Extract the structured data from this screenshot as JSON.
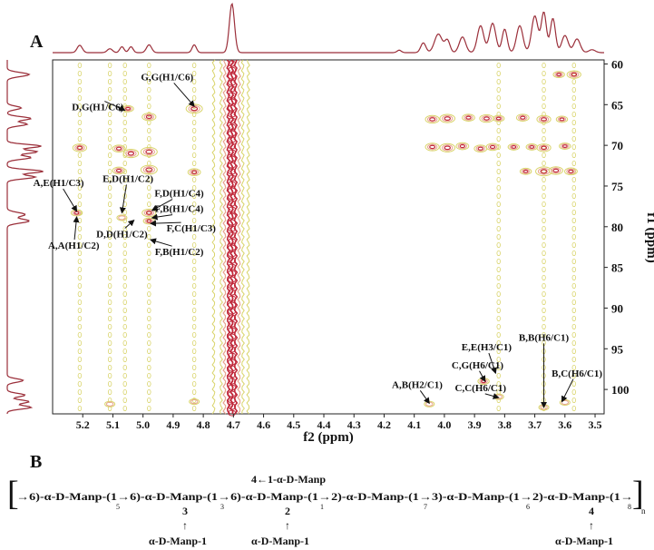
{
  "chart_data": {
    "type": "heatmap",
    "panel_label": "A",
    "xlabel": "f2 (ppm)",
    "ylabel": "f1 (ppm)",
    "xlim": [
      5.3,
      3.47
    ],
    "ylim": [
      59.5,
      103
    ],
    "x_ticks": [
      "5.2",
      "5.1",
      "5.0",
      "4.9",
      "4.8",
      "4.7",
      "4.6",
      "4.5",
      "4.4",
      "4.3",
      "4.2",
      "4.1",
      "4.0",
      "3.9",
      "3.8",
      "3.7",
      "3.6",
      "3.5"
    ],
    "x_tick_values": [
      5.2,
      5.1,
      5.0,
      4.9,
      4.8,
      4.7,
      4.6,
      4.5,
      4.4,
      4.3,
      4.2,
      4.1,
      4.0,
      3.9,
      3.8,
      3.7,
      3.6,
      3.5
    ],
    "y_ticks": [
      "60",
      "65",
      "70",
      "75",
      "80",
      "85",
      "90",
      "95",
      "100"
    ],
    "y_tick_values": [
      60,
      65,
      70,
      75,
      80,
      85,
      90,
      95,
      100
    ],
    "colors": {
      "low": "#d9d46a",
      "mid": "#e8a38f",
      "high": "#c0283a",
      "trace": "#9b2f3a"
    },
    "water_band_x": 4.705,
    "streak_columns": [
      5.21,
      5.11,
      5.06,
      4.98,
      4.83,
      3.82,
      3.67,
      3.57
    ],
    "peaks": [
      {
        "x": 5.05,
        "y": 65.5,
        "s": 0.6
      },
      {
        "x": 4.83,
        "y": 65.5,
        "s": 1.0
      },
      {
        "x": 4.98,
        "y": 66.5,
        "s": 0.8
      },
      {
        "x": 5.21,
        "y": 70.3,
        "s": 0.8
      },
      {
        "x": 5.08,
        "y": 70.4,
        "s": 0.7
      },
      {
        "x": 5.04,
        "y": 71.0,
        "s": 0.9
      },
      {
        "x": 4.98,
        "y": 70.8,
        "s": 1.0
      },
      {
        "x": 5.08,
        "y": 73.1,
        "s": 0.7
      },
      {
        "x": 4.98,
        "y": 73.0,
        "s": 1.0
      },
      {
        "x": 4.83,
        "y": 73.3,
        "s": 0.7
      },
      {
        "x": 5.22,
        "y": 78.3,
        "s": 0.6
      },
      {
        "x": 5.07,
        "y": 78.9,
        "s": 0.5
      },
      {
        "x": 4.98,
        "y": 78.3,
        "s": 0.8
      },
      {
        "x": 4.98,
        "y": 79.3,
        "s": 0.6
      },
      {
        "x": 5.11,
        "y": 101.8,
        "s": 0.5
      },
      {
        "x": 4.83,
        "y": 101.5,
        "s": 0.5
      },
      {
        "x": 4.04,
        "y": 66.8,
        "s": 0.8
      },
      {
        "x": 3.99,
        "y": 66.7,
        "s": 0.9
      },
      {
        "x": 3.92,
        "y": 66.6,
        "s": 0.7
      },
      {
        "x": 3.86,
        "y": 66.7,
        "s": 0.8
      },
      {
        "x": 3.82,
        "y": 66.7,
        "s": 0.6
      },
      {
        "x": 3.74,
        "y": 66.6,
        "s": 0.7
      },
      {
        "x": 3.67,
        "y": 66.8,
        "s": 0.8
      },
      {
        "x": 3.61,
        "y": 66.8,
        "s": 0.6
      },
      {
        "x": 4.04,
        "y": 70.2,
        "s": 0.8
      },
      {
        "x": 3.99,
        "y": 70.3,
        "s": 0.9
      },
      {
        "x": 3.94,
        "y": 70.1,
        "s": 0.7
      },
      {
        "x": 3.88,
        "y": 70.4,
        "s": 0.7
      },
      {
        "x": 3.84,
        "y": 70.2,
        "s": 0.7
      },
      {
        "x": 3.77,
        "y": 70.2,
        "s": 0.6
      },
      {
        "x": 3.71,
        "y": 70.2,
        "s": 0.6
      },
      {
        "x": 3.67,
        "y": 70.3,
        "s": 0.8
      },
      {
        "x": 3.6,
        "y": 70.1,
        "s": 0.6
      },
      {
        "x": 3.67,
        "y": 73.2,
        "s": 1.0
      },
      {
        "x": 3.63,
        "y": 73.1,
        "s": 0.8
      },
      {
        "x": 3.58,
        "y": 73.2,
        "s": 0.7
      },
      {
        "x": 3.73,
        "y": 73.2,
        "s": 0.6
      },
      {
        "x": 3.57,
        "y": 61.3,
        "s": 0.8
      },
      {
        "x": 3.62,
        "y": 61.3,
        "s": 0.6
      },
      {
        "x": 4.05,
        "y": 101.8,
        "s": 0.5
      },
      {
        "x": 3.87,
        "y": 99.0,
        "s": 0.6
      },
      {
        "x": 3.82,
        "y": 100.9,
        "s": 0.5
      },
      {
        "x": 3.67,
        "y": 102.2,
        "s": 0.5
      },
      {
        "x": 3.6,
        "y": 101.6,
        "s": 0.5
      }
    ],
    "annotations": [
      {
        "text": "G,G(H1/C6)",
        "tx": 4.92,
        "ty": 62.0,
        "ax": 4.83,
        "ay": 65.2
      },
      {
        "text": "D,G(H1/C6)",
        "tx": 5.15,
        "ty": 65.7,
        "ax": 5.06,
        "ay": 65.7
      },
      {
        "text": "E,D(H1/C2)",
        "tx": 5.05,
        "ty": 74.5,
        "ax": 5.07,
        "ay": 78.3
      },
      {
        "text": "A,E(H1/C3)",
        "tx": 5.28,
        "ty": 75.0,
        "ax": 5.22,
        "ay": 78.1
      },
      {
        "text": "F,D(H1/C4)",
        "tx": 4.88,
        "ty": 76.3,
        "ax": 4.97,
        "ay": 78.0
      },
      {
        "text": "F,B(H1/C4)",
        "tx": 4.88,
        "ty": 78.2,
        "ax": 4.97,
        "ay": 78.9
      },
      {
        "text": "D,D(H1/C2)",
        "tx": 5.07,
        "ty": 81.3,
        "ax": 5.03,
        "ay": 79.2
      },
      {
        "text": "F,C(H1/C3)",
        "tx": 4.84,
        "ty": 80.6,
        "ax": 4.975,
        "ay": 79.6
      },
      {
        "text": "A,A(H1/C2)",
        "tx": 5.23,
        "ty": 82.7,
        "ax": 5.22,
        "ay": 78.8
      },
      {
        "text": "F,B(H1/C2)",
        "tx": 4.88,
        "ty": 83.5,
        "ax": 4.975,
        "ay": 81.6
      },
      {
        "text": "E,E(H3/C1)",
        "tx": 3.86,
        "ty": 95.2,
        "ax": 3.83,
        "ay": 98.0
      },
      {
        "text": "B,B(H6/C1)",
        "tx": 3.67,
        "ty": 94.0,
        "ax": 3.67,
        "ay": 102.2
      },
      {
        "text": "C,G(H6/C1)",
        "tx": 3.89,
        "ty": 97.4,
        "ax": 3.865,
        "ay": 99.0
      },
      {
        "text": "B,C(H6/C1)",
        "tx": 3.56,
        "ty": 98.4,
        "ax": 3.61,
        "ay": 101.5
      },
      {
        "text": "A,B(H2/C1)",
        "tx": 4.09,
        "ty": 99.8,
        "ax": 4.05,
        "ay": 101.7
      },
      {
        "text": "C,C(H6/C1)",
        "tx": 3.88,
        "ty": 100.2,
        "ax": 3.82,
        "ay": 101.0
      }
    ],
    "h1_spectrum": [
      {
        "x": 5.21,
        "h": 0.15,
        "w": 0.012
      },
      {
        "x": 5.11,
        "h": 0.08,
        "w": 0.012
      },
      {
        "x": 5.07,
        "h": 0.12,
        "w": 0.01
      },
      {
        "x": 5.04,
        "h": 0.12,
        "w": 0.01
      },
      {
        "x": 4.98,
        "h": 0.16,
        "w": 0.012
      },
      {
        "x": 4.83,
        "h": 0.16,
        "w": 0.01
      },
      {
        "x": 4.705,
        "h": 1.0,
        "w": 0.012
      },
      {
        "x": 4.15,
        "h": 0.05,
        "w": 0.01
      },
      {
        "x": 4.07,
        "h": 0.2,
        "w": 0.012
      },
      {
        "x": 4.02,
        "h": 0.38,
        "w": 0.018
      },
      {
        "x": 3.99,
        "h": 0.25,
        "w": 0.012
      },
      {
        "x": 3.94,
        "h": 0.32,
        "w": 0.015
      },
      {
        "x": 3.88,
        "h": 0.55,
        "w": 0.015
      },
      {
        "x": 3.84,
        "h": 0.6,
        "w": 0.015
      },
      {
        "x": 3.8,
        "h": 0.48,
        "w": 0.012
      },
      {
        "x": 3.75,
        "h": 0.55,
        "w": 0.015
      },
      {
        "x": 3.7,
        "h": 0.75,
        "w": 0.015
      },
      {
        "x": 3.67,
        "h": 0.82,
        "w": 0.012
      },
      {
        "x": 3.64,
        "h": 0.7,
        "w": 0.012
      },
      {
        "x": 3.6,
        "h": 0.35,
        "w": 0.015
      },
      {
        "x": 3.56,
        "h": 0.28,
        "w": 0.015
      },
      {
        "x": 3.51,
        "h": 0.06,
        "w": 0.015
      }
    ],
    "c13_spectrum": [
      {
        "y": 61.3,
        "h": 0.55,
        "w": 0.35
      },
      {
        "y": 65.4,
        "h": 0.35,
        "w": 0.3
      },
      {
        "y": 66.7,
        "h": 0.6,
        "w": 0.3
      },
      {
        "y": 67.4,
        "h": 0.5,
        "w": 0.3
      },
      {
        "y": 70.1,
        "h": 0.85,
        "w": 0.3
      },
      {
        "y": 70.8,
        "h": 0.75,
        "w": 0.3
      },
      {
        "y": 71.5,
        "h": 0.6,
        "w": 0.3
      },
      {
        "y": 73.2,
        "h": 0.9,
        "w": 0.3
      },
      {
        "y": 73.9,
        "h": 0.7,
        "w": 0.3
      },
      {
        "y": 78.5,
        "h": 0.45,
        "w": 0.35
      },
      {
        "y": 79.3,
        "h": 0.55,
        "w": 0.35
      },
      {
        "y": 98.9,
        "h": 0.4,
        "w": 0.3
      },
      {
        "y": 100.7,
        "h": 0.45,
        "w": 0.3
      },
      {
        "y": 101.5,
        "h": 0.55,
        "w": 0.3
      },
      {
        "y": 102.2,
        "h": 0.6,
        "w": 0.3
      }
    ]
  },
  "structure": {
    "panel_label": "B",
    "open_bracket": "[",
    "close_bracket": "]",
    "branch_top": "4←1-α-D-Manp",
    "main_chain": "→6)-α-D-Manp-(1→6)-α-D-Manp-(1→6)-α-D-Manp-(1→2)-α-D-Manp-(1→3)-α-D-Manp-(1→2)-α-D-Manp-(1→",
    "residue_subscripts": [
      "5",
      "3",
      "1",
      "7",
      "6",
      "8"
    ],
    "repeat_subscript": "n",
    "branch_positions": [
      "3",
      "2",
      "4"
    ],
    "branch_arrows": [
      "↑",
      "↑",
      "↑"
    ],
    "branch_residues": [
      "α-D-Manp-1",
      "α-D-Manp-1",
      "α-D-Manp-1"
    ]
  }
}
